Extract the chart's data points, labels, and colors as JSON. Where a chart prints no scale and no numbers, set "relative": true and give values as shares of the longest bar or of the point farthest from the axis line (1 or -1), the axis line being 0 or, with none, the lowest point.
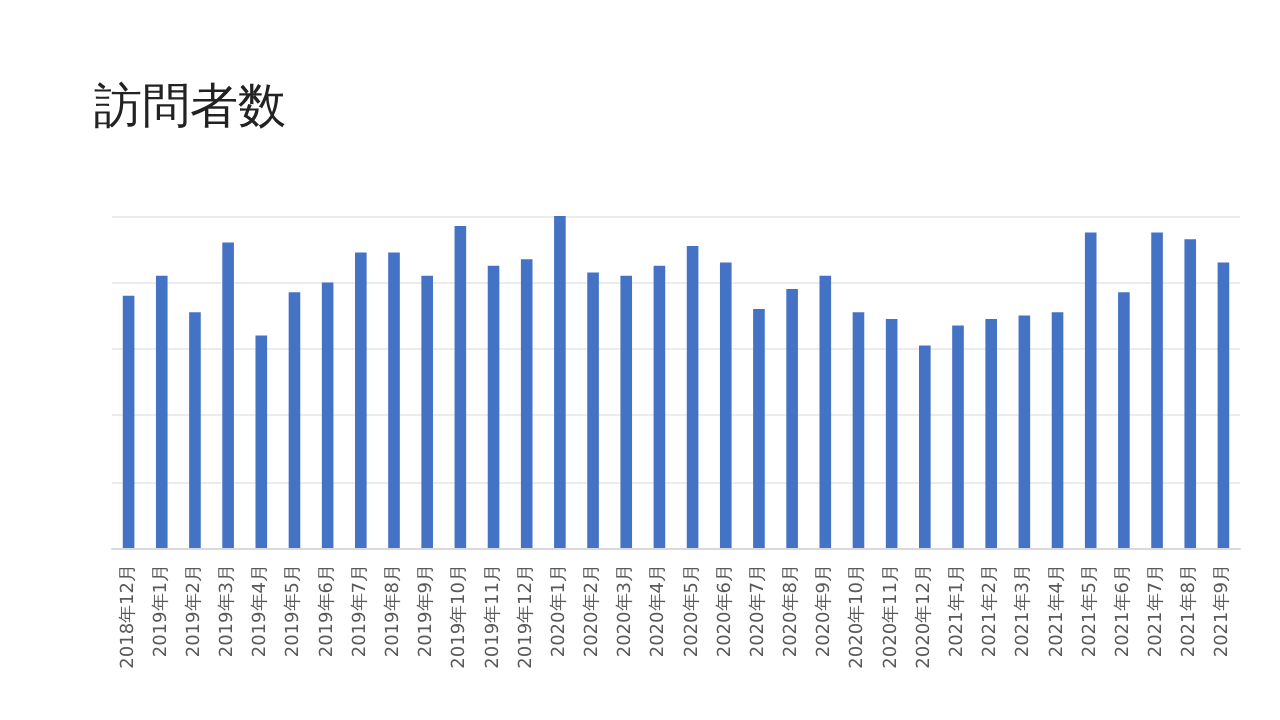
{
  "chart_data": {
    "type": "bar",
    "title": "訪問者数",
    "relative": true,
    "grid": "y",
    "color": "#4472c4",
    "categories": [
      "2018年12月",
      "2019年1月",
      "2019年2月",
      "2019年3月",
      "2019年4月",
      "2019年5月",
      "2019年6月",
      "2019年7月",
      "2019年8月",
      "2019年9月",
      "2019年10月",
      "2019年11月",
      "2019年12月",
      "2020年1月",
      "2020年2月",
      "2020年3月",
      "2020年4月",
      "2020年5月",
      "2020年6月",
      "2020年7月",
      "2020年8月",
      "2020年9月",
      "2020年10月",
      "2020年11月",
      "2020年12月",
      "2021年1月",
      "2021年2月",
      "2021年3月",
      "2021年4月",
      "2021年5月",
      "2021年6月",
      "2021年7月",
      "2021年8月",
      "2021年9月"
    ],
    "values": [
      0.76,
      0.82,
      0.71,
      0.92,
      0.64,
      0.77,
      0.8,
      0.89,
      0.89,
      0.82,
      0.97,
      0.85,
      0.87,
      1,
      0.83,
      0.82,
      0.85,
      0.91,
      0.86,
      0.72,
      0.78,
      0.82,
      0.71,
      0.69,
      0.61,
      0.67,
      0.69,
      0.7,
      0.71,
      0.95,
      0.77,
      0.95,
      0.93,
      0.86
    ]
  }
}
